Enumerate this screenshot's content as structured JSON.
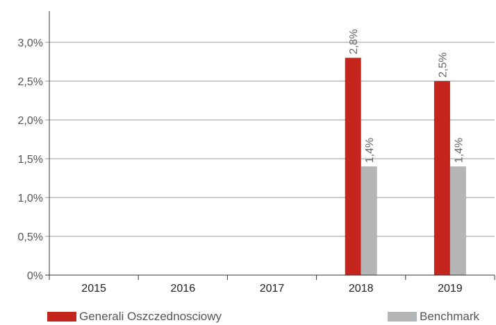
{
  "chart_data": {
    "type": "bar",
    "categories": [
      "2015",
      "2016",
      "2017",
      "2018",
      "2019"
    ],
    "series": [
      {
        "name": "Generali Oszczednosciowy",
        "values": [
          null,
          null,
          null,
          2.8,
          2.5
        ],
        "labels": [
          "",
          "",
          "",
          "2,8%",
          "2,5%"
        ],
        "color": "#c4261d"
      },
      {
        "name": "Benchmark",
        "values": [
          null,
          null,
          null,
          1.4,
          1.4
        ],
        "labels": [
          "",
          "",
          "",
          "1,4%",
          "1,4%"
        ],
        "color": "#b3b5b7"
      }
    ],
    "y_ticks": [
      {
        "value": 0,
        "label": "0%"
      },
      {
        "value": 0.5,
        "label": "0,5%"
      },
      {
        "value": 1.0,
        "label": "1,0%"
      },
      {
        "value": 1.5,
        "label": "1,5%"
      },
      {
        "value": 2.0,
        "label": "2,0%"
      },
      {
        "value": 2.5,
        "label": "2,5%"
      },
      {
        "value": 3.0,
        "label": "3,0%"
      }
    ],
    "ylim": [
      0,
      3.0
    ],
    "grid": true,
    "legend_position": "bottom",
    "title": "",
    "xlabel": "",
    "ylabel": ""
  }
}
